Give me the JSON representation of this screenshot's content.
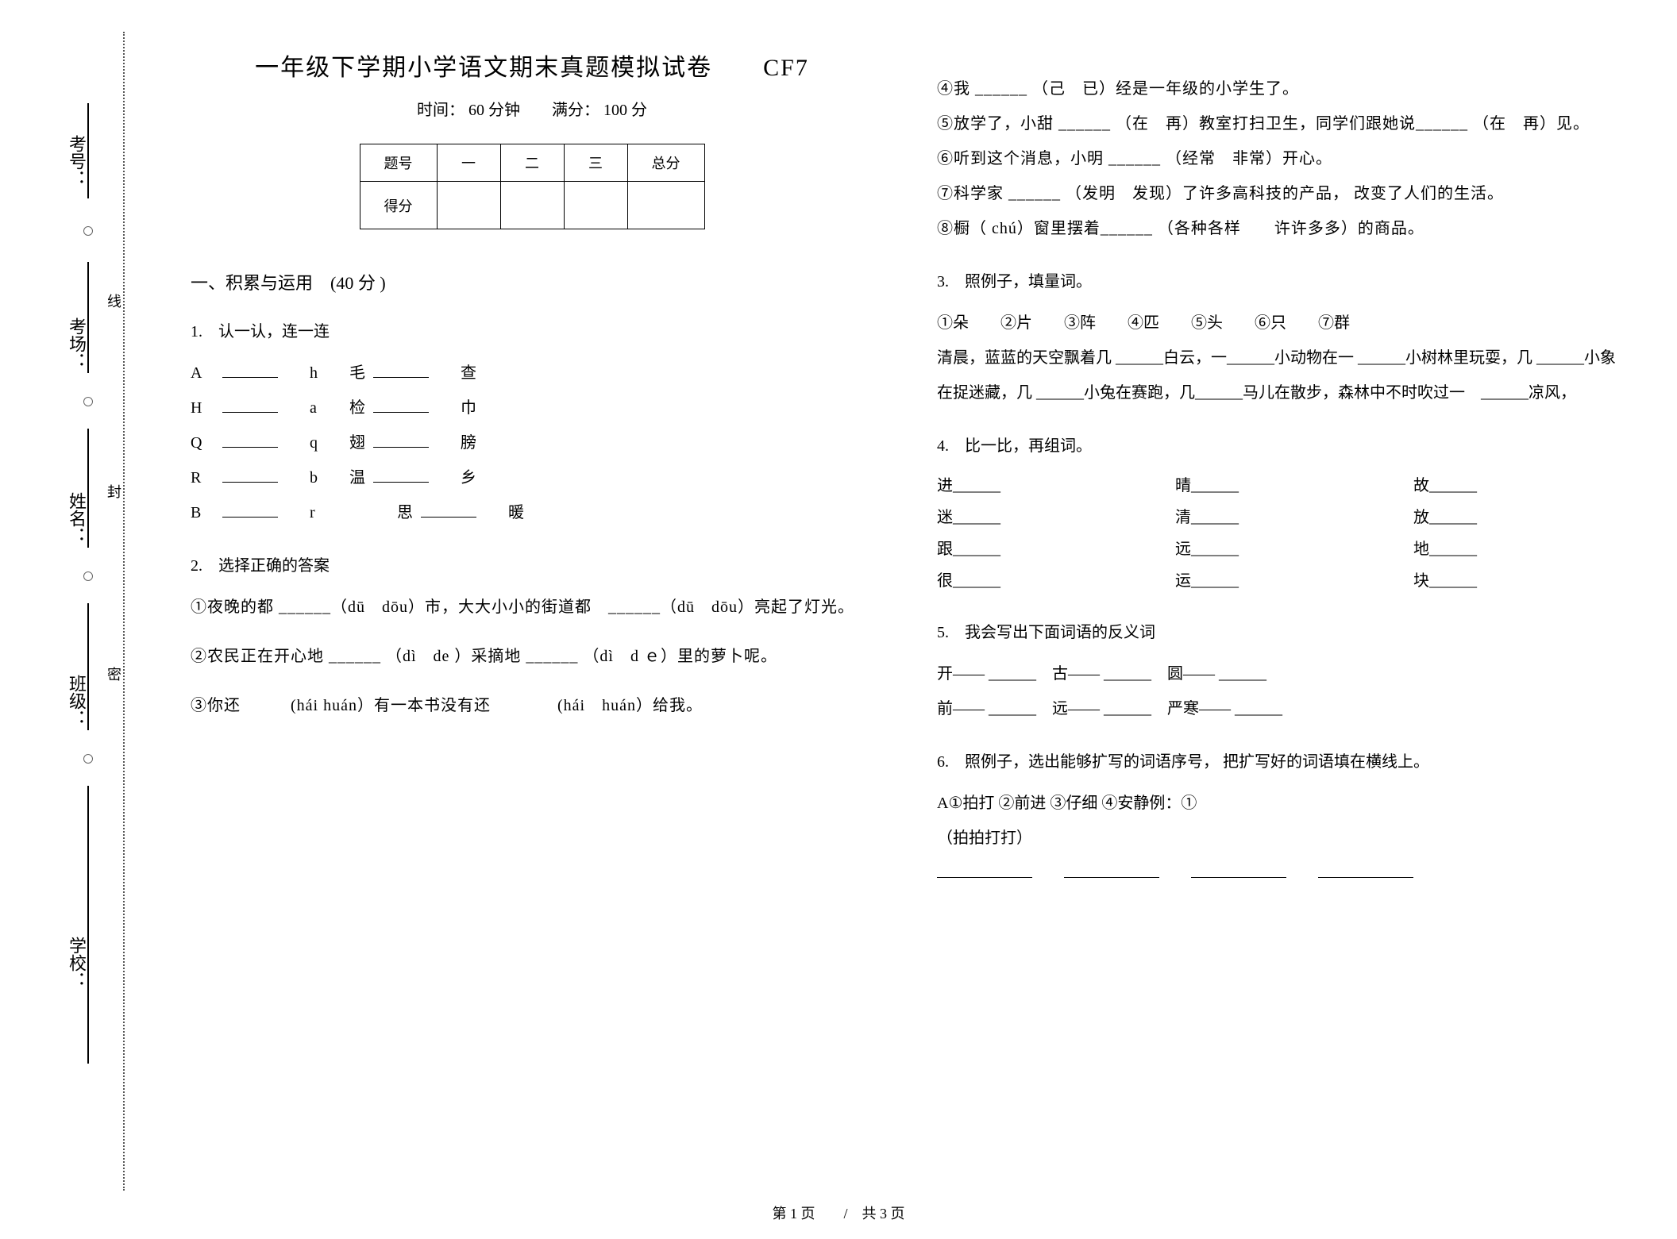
{
  "binding": {
    "labels": [
      "考号：",
      "考场：",
      "姓名：",
      "班级：",
      "学校："
    ],
    "vert_markers": [
      "线",
      "封",
      "密"
    ]
  },
  "header": {
    "title": "一年级下学期小学语文期末真题模拟试卷　　CF7",
    "subtitle": "时间： 60 分钟　　满分： 100 分"
  },
  "score_table": {
    "headers": [
      "题号",
      "一",
      "二",
      "三",
      "总分"
    ],
    "row2_label": "得分"
  },
  "section1": {
    "title": "一、积累与运用　(40 分 )"
  },
  "q1": {
    "title": "1.　认一认，连一连",
    "rows": [
      [
        "A",
        "h",
        "毛",
        "查"
      ],
      [
        "H",
        "a",
        "检",
        "巾"
      ],
      [
        "Q",
        "q",
        "翅",
        "膀"
      ],
      [
        "R",
        "b",
        "温",
        "乡"
      ],
      [
        "B",
        "r",
        "思",
        "暖"
      ]
    ]
  },
  "q2": {
    "title": "2.　选择正确的答案",
    "items": [
      "①夜晚的都 ______（dū　dōu）市，大大小小的街道都　______（dū　dōu）亮起了灯光。",
      "②农民正在开心地 ______ （dì　de ）采摘地 ______ （dì　d ｅ）里的萝卜呢。",
      "③你还　　　(hái huán）有一本书没有还　　　　(hái　huán）给我。",
      "④我 ______ （己　已）经是一年级的小学生了。",
      "⑤放学了，小甜 ______ （在　再）教室打扫卫生，同学们跟她说______ （在　再）见。",
      "⑥听到这个消息，小明 ______ （经常　非常）开心。",
      "⑦科学家 ______ （发明　发现）了许多高科技的产品， 改变了人们的生活。",
      "⑧橱（ chú）窗里摆着______ （各种各样　　许许多多）的商品。"
    ]
  },
  "q3": {
    "title": "3.　照例子，填量词。",
    "options": "①朵　　②片　　③阵　　④匹　　⑤头　　⑥只　　⑦群",
    "text": "清晨，蓝蓝的天空飘着几 ______白云，一______小动物在一 ______小树林里玩耍，几 ______小象在捉迷藏，几 ______小兔在赛跑，几______马儿在散步，森林中不时吹过一　______凉风，"
  },
  "q4": {
    "title": "4.　比一比，再组词。",
    "pairs": [
      [
        "进______",
        "晴______",
        "故______"
      ],
      [
        "迷______",
        "清______",
        "放______"
      ],
      [
        "跟______",
        "远______",
        "地______"
      ],
      [
        "很______",
        "运______",
        "块______"
      ]
    ]
  },
  "q5": {
    "title": "5.　我会写出下面词语的反义词",
    "line1": "开—— ______　古—— ______　圆—— ______",
    "line2": "前—— ______　远—— ______　严寒—— ______"
  },
  "q6": {
    "title": "6.　照例子，选出能够扩写的词语序号， 把扩写好的词语填在横线上。",
    "options": "A①拍打 ②前进 ③仔细 ④安静例：①",
    "example": "（拍拍打打）"
  },
  "footer": {
    "text": "第 1 页　　/　共 3 页"
  }
}
